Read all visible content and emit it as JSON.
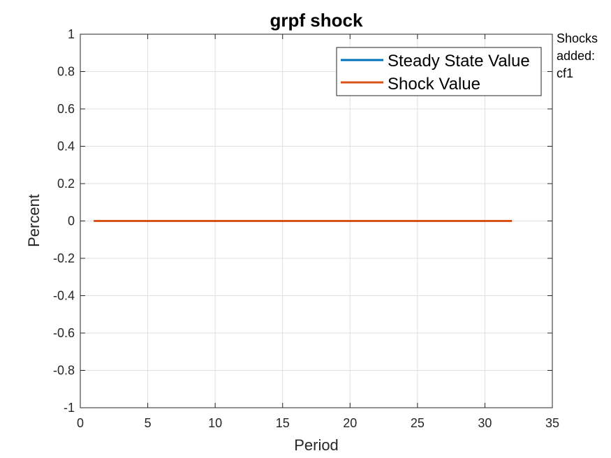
{
  "chart_data": {
    "type": "line",
    "title": "grpf shock",
    "xlabel": "Period",
    "ylabel": "Percent",
    "xlim": [
      0,
      35
    ],
    "ylim": [
      -1,
      1
    ],
    "xticks": [
      0,
      5,
      10,
      15,
      20,
      25,
      30,
      35
    ],
    "yticks": [
      -1,
      -0.8,
      -0.6,
      -0.4,
      -0.2,
      0,
      0.2,
      0.4,
      0.6,
      0.8,
      1
    ],
    "xtick_labels": [
      "0",
      "5",
      "10",
      "15",
      "20",
      "25",
      "30",
      "35"
    ],
    "ytick_labels": [
      "-1",
      "-0.8",
      "-0.6",
      "-0.4",
      "-0.2",
      "0",
      "0.2",
      "0.4",
      "0.6",
      "0.8",
      "1"
    ],
    "grid": true,
    "legend_position": "top-right",
    "series": [
      {
        "name": "Steady State Value",
        "color": "#0072BD",
        "x": [
          1,
          2,
          3,
          4,
          5,
          6,
          7,
          8,
          9,
          10,
          11,
          12,
          13,
          14,
          15,
          16,
          17,
          18,
          19,
          20,
          21,
          22,
          23,
          24,
          25,
          26,
          27,
          28,
          29,
          30,
          31,
          32
        ],
        "values": [
          0,
          0,
          0,
          0,
          0,
          0,
          0,
          0,
          0,
          0,
          0,
          0,
          0,
          0,
          0,
          0,
          0,
          0,
          0,
          0,
          0,
          0,
          0,
          0,
          0,
          0,
          0,
          0,
          0,
          0,
          0,
          0
        ]
      },
      {
        "name": "Shock Value",
        "color": "#D95319",
        "x": [
          1,
          2,
          3,
          4,
          5,
          6,
          7,
          8,
          9,
          10,
          11,
          12,
          13,
          14,
          15,
          16,
          17,
          18,
          19,
          20,
          21,
          22,
          23,
          24,
          25,
          26,
          27,
          28,
          29,
          30,
          31,
          32
        ],
        "values": [
          0,
          0,
          0,
          0,
          0,
          0,
          0,
          0,
          0,
          0,
          0,
          0,
          0,
          0,
          0,
          0,
          0,
          0,
          0,
          0,
          0,
          0,
          0,
          0,
          0,
          0,
          0,
          0,
          0,
          0,
          0,
          0
        ]
      }
    ],
    "annotation": {
      "lines": [
        "Shocks",
        "added:",
        "cf1"
      ]
    }
  }
}
